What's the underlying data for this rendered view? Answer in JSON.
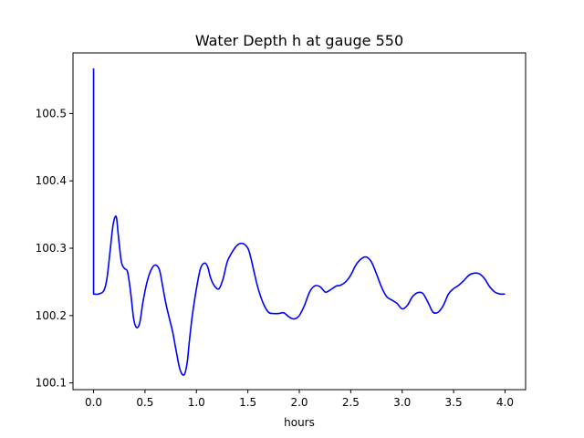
{
  "chart_data": {
    "type": "line",
    "title": "Water Depth h at gauge 550",
    "xlabel": "hours",
    "ylabel": "",
    "xlim": [
      -0.2,
      4.2
    ],
    "ylim": [
      100.09,
      100.59
    ],
    "xticks": [
      0.0,
      0.5,
      1.0,
      1.5,
      2.0,
      2.5,
      3.0,
      3.5,
      4.0
    ],
    "xtick_labels": [
      "0.0",
      "0.5",
      "1.0",
      "1.5",
      "2.0",
      "2.5",
      "3.0",
      "3.5",
      "4.0"
    ],
    "yticks": [
      100.1,
      100.2,
      100.3,
      100.4,
      100.5
    ],
    "ytick_labels": [
      "100.1",
      "100.2",
      "100.3",
      "100.4",
      "100.5"
    ],
    "grid": false,
    "series": [
      {
        "color": "#0000ff",
        "x": [
          0.0,
          0.0,
          0.0,
          0.05,
          0.1,
          0.13,
          0.16,
          0.19,
          0.22,
          0.24,
          0.27,
          0.3,
          0.33,
          0.36,
          0.39,
          0.42,
          0.45,
          0.48,
          0.52,
          0.56,
          0.6,
          0.64,
          0.67,
          0.7,
          0.73,
          0.77,
          0.8,
          0.84,
          0.88,
          0.91,
          0.93,
          0.96,
          1.0,
          1.04,
          1.08,
          1.11,
          1.14,
          1.18,
          1.22,
          1.26,
          1.3,
          1.35,
          1.4,
          1.45,
          1.5,
          1.53,
          1.56,
          1.6,
          1.65,
          1.7,
          1.75,
          1.8,
          1.85,
          1.9,
          1.95,
          2.0,
          2.05,
          2.1,
          2.15,
          2.2,
          2.25,
          2.28,
          2.32,
          2.36,
          2.4,
          2.45,
          2.5,
          2.55,
          2.6,
          2.65,
          2.7,
          2.75,
          2.8,
          2.85,
          2.9,
          2.95,
          3.0,
          3.05,
          3.1,
          3.15,
          3.2,
          3.25,
          3.3,
          3.35,
          3.4,
          3.45,
          3.5,
          3.55,
          3.6,
          3.65,
          3.7,
          3.75,
          3.8,
          3.85,
          3.9,
          3.95,
          4.0
        ],
        "y": [
          100.567,
          100.232,
          100.232,
          100.232,
          100.237,
          100.255,
          100.295,
          100.335,
          100.347,
          100.32,
          100.28,
          100.27,
          100.265,
          100.235,
          100.195,
          100.182,
          100.19,
          100.22,
          100.25,
          100.268,
          100.275,
          100.268,
          100.245,
          100.22,
          100.2,
          100.175,
          100.15,
          100.12,
          100.112,
          100.13,
          100.16,
          100.2,
          100.24,
          100.27,
          100.278,
          100.272,
          100.255,
          100.243,
          100.24,
          100.255,
          100.28,
          100.295,
          100.305,
          100.307,
          100.3,
          100.285,
          100.265,
          100.24,
          100.218,
          100.205,
          100.203,
          100.203,
          100.204,
          100.198,
          100.195,
          100.2,
          100.215,
          100.235,
          100.244,
          100.243,
          100.235,
          100.236,
          100.24,
          100.244,
          100.245,
          100.25,
          100.26,
          100.275,
          100.284,
          100.287,
          100.28,
          100.262,
          100.242,
          100.228,
          100.223,
          100.218,
          100.21,
          100.215,
          100.228,
          100.234,
          100.233,
          100.22,
          100.205,
          100.205,
          100.215,
          100.232,
          100.24,
          100.245,
          100.252,
          100.26,
          100.263,
          100.262,
          100.255,
          100.243,
          100.235,
          100.232,
          100.232
        ]
      }
    ]
  }
}
